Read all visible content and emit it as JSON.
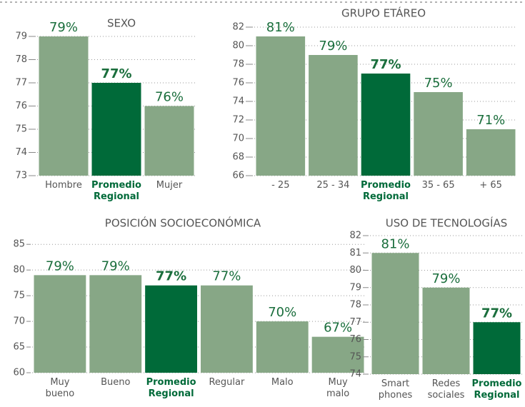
{
  "chart_data": [
    {
      "type": "bar",
      "title": "SEXO",
      "categories": [
        "Hombre",
        "Promedio\nRegional",
        "Mujer"
      ],
      "values": [
        79,
        77,
        76
      ],
      "value_labels": [
        "79%",
        "77%",
        "76%"
      ],
      "colors": [
        "#87a786",
        "#006a39",
        "#87a786"
      ],
      "ylim": [
        73,
        79.5
      ],
      "yticks": [
        73,
        74,
        75,
        76,
        77,
        78,
        79
      ],
      "grid": true
    },
    {
      "type": "bar",
      "title": "GRUPO ETÁREO",
      "categories": [
        "- 25",
        "25 - 34",
        "Promedio\nRegional",
        "35 - 65",
        "+ 65"
      ],
      "values": [
        81,
        79,
        77,
        75,
        71
      ],
      "value_labels": [
        "81%",
        "79%",
        "77%",
        "75%",
        "71%"
      ],
      "colors": [
        "#87a786",
        "#87a786",
        "#006a39",
        "#87a786",
        "#87a786"
      ],
      "ylim": [
        66,
        82
      ],
      "yticks": [
        66,
        68,
        70,
        72,
        74,
        76,
        78,
        80,
        82
      ],
      "grid": true
    },
    {
      "type": "bar",
      "title": "POSICIÓN SOCIOECONÓMICA",
      "categories": [
        "Muy\nbueno",
        "Bueno",
        "Promedio\nRegional",
        "Regular",
        "Malo",
        "Muy\nmalo"
      ],
      "values": [
        79,
        79,
        77,
        77,
        70,
        67
      ],
      "value_labels": [
        "79%",
        "79%",
        "77%",
        "77%",
        "70%",
        "67%"
      ],
      "colors": [
        "#87a786",
        "#87a786",
        "#006a39",
        "#87a786",
        "#87a786",
        "#87a786"
      ],
      "ylim": [
        60,
        86
      ],
      "yticks": [
        60,
        65,
        70,
        75,
        80,
        85
      ],
      "grid": true
    },
    {
      "type": "bar",
      "title": "USO DE TECNOLOGÍAS",
      "categories": [
        "Smart\nphones",
        "Redes\nsociales",
        "Promedio\nRegional"
      ],
      "values": [
        81,
        79,
        77
      ],
      "value_labels": [
        "81%",
        "79%",
        "77%"
      ],
      "colors": [
        "#87a786",
        "#87a786",
        "#006a39"
      ],
      "ylim": [
        74,
        82
      ],
      "yticks": [
        74,
        75,
        76,
        77,
        78,
        79,
        80,
        81,
        82
      ],
      "grid": true
    }
  ]
}
